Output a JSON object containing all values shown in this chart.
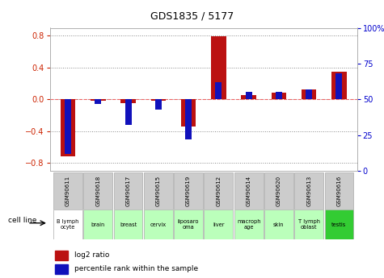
{
  "title": "GDS1835 / 5177",
  "samples": [
    "GSM90611",
    "GSM90618",
    "GSM90617",
    "GSM90615",
    "GSM90619",
    "GSM90612",
    "GSM90614",
    "GSM90620",
    "GSM90613",
    "GSM90616"
  ],
  "cell_lines": [
    "B lymph\nocyte",
    "brain",
    "breast",
    "cervix",
    "liposaro\noma",
    "liver",
    "macroph\nage",
    "skin",
    "T lymph\noblast",
    "testis"
  ],
  "cell_colors": [
    "#ffffff",
    "#bbffbb",
    "#bbffbb",
    "#bbffbb",
    "#bbffbb",
    "#bbffbb",
    "#bbffbb",
    "#bbffbb",
    "#bbffbb",
    "#33cc33"
  ],
  "log2_ratio": [
    -0.72,
    -0.02,
    -0.05,
    -0.02,
    -0.34,
    0.79,
    0.05,
    0.08,
    0.13,
    0.35
  ],
  "percentile_rank": [
    12,
    47,
    32,
    43,
    22,
    62,
    55,
    55,
    57,
    68
  ],
  "ylim_left": [
    -0.9,
    0.9
  ],
  "ylim_right": [
    0,
    100
  ],
  "yticks_left": [
    -0.8,
    -0.4,
    0.0,
    0.4,
    0.8
  ],
  "yticks_right": [
    0,
    25,
    50,
    75,
    100
  ],
  "bar_color_red": "#bb1111",
  "bar_color_blue": "#1111bb",
  "grid_color": "#888888",
  "zero_line_color": "#ee6666",
  "bg_color": "#ffffff",
  "tick_label_color_left": "#cc2200",
  "tick_label_color_right": "#0000cc",
  "legend_red": "log2 ratio",
  "legend_blue": "percentile rank within the sample",
  "cell_line_label": "cell line",
  "sample_box_color": "#cccccc",
  "sample_box_edge": "#aaaaaa"
}
